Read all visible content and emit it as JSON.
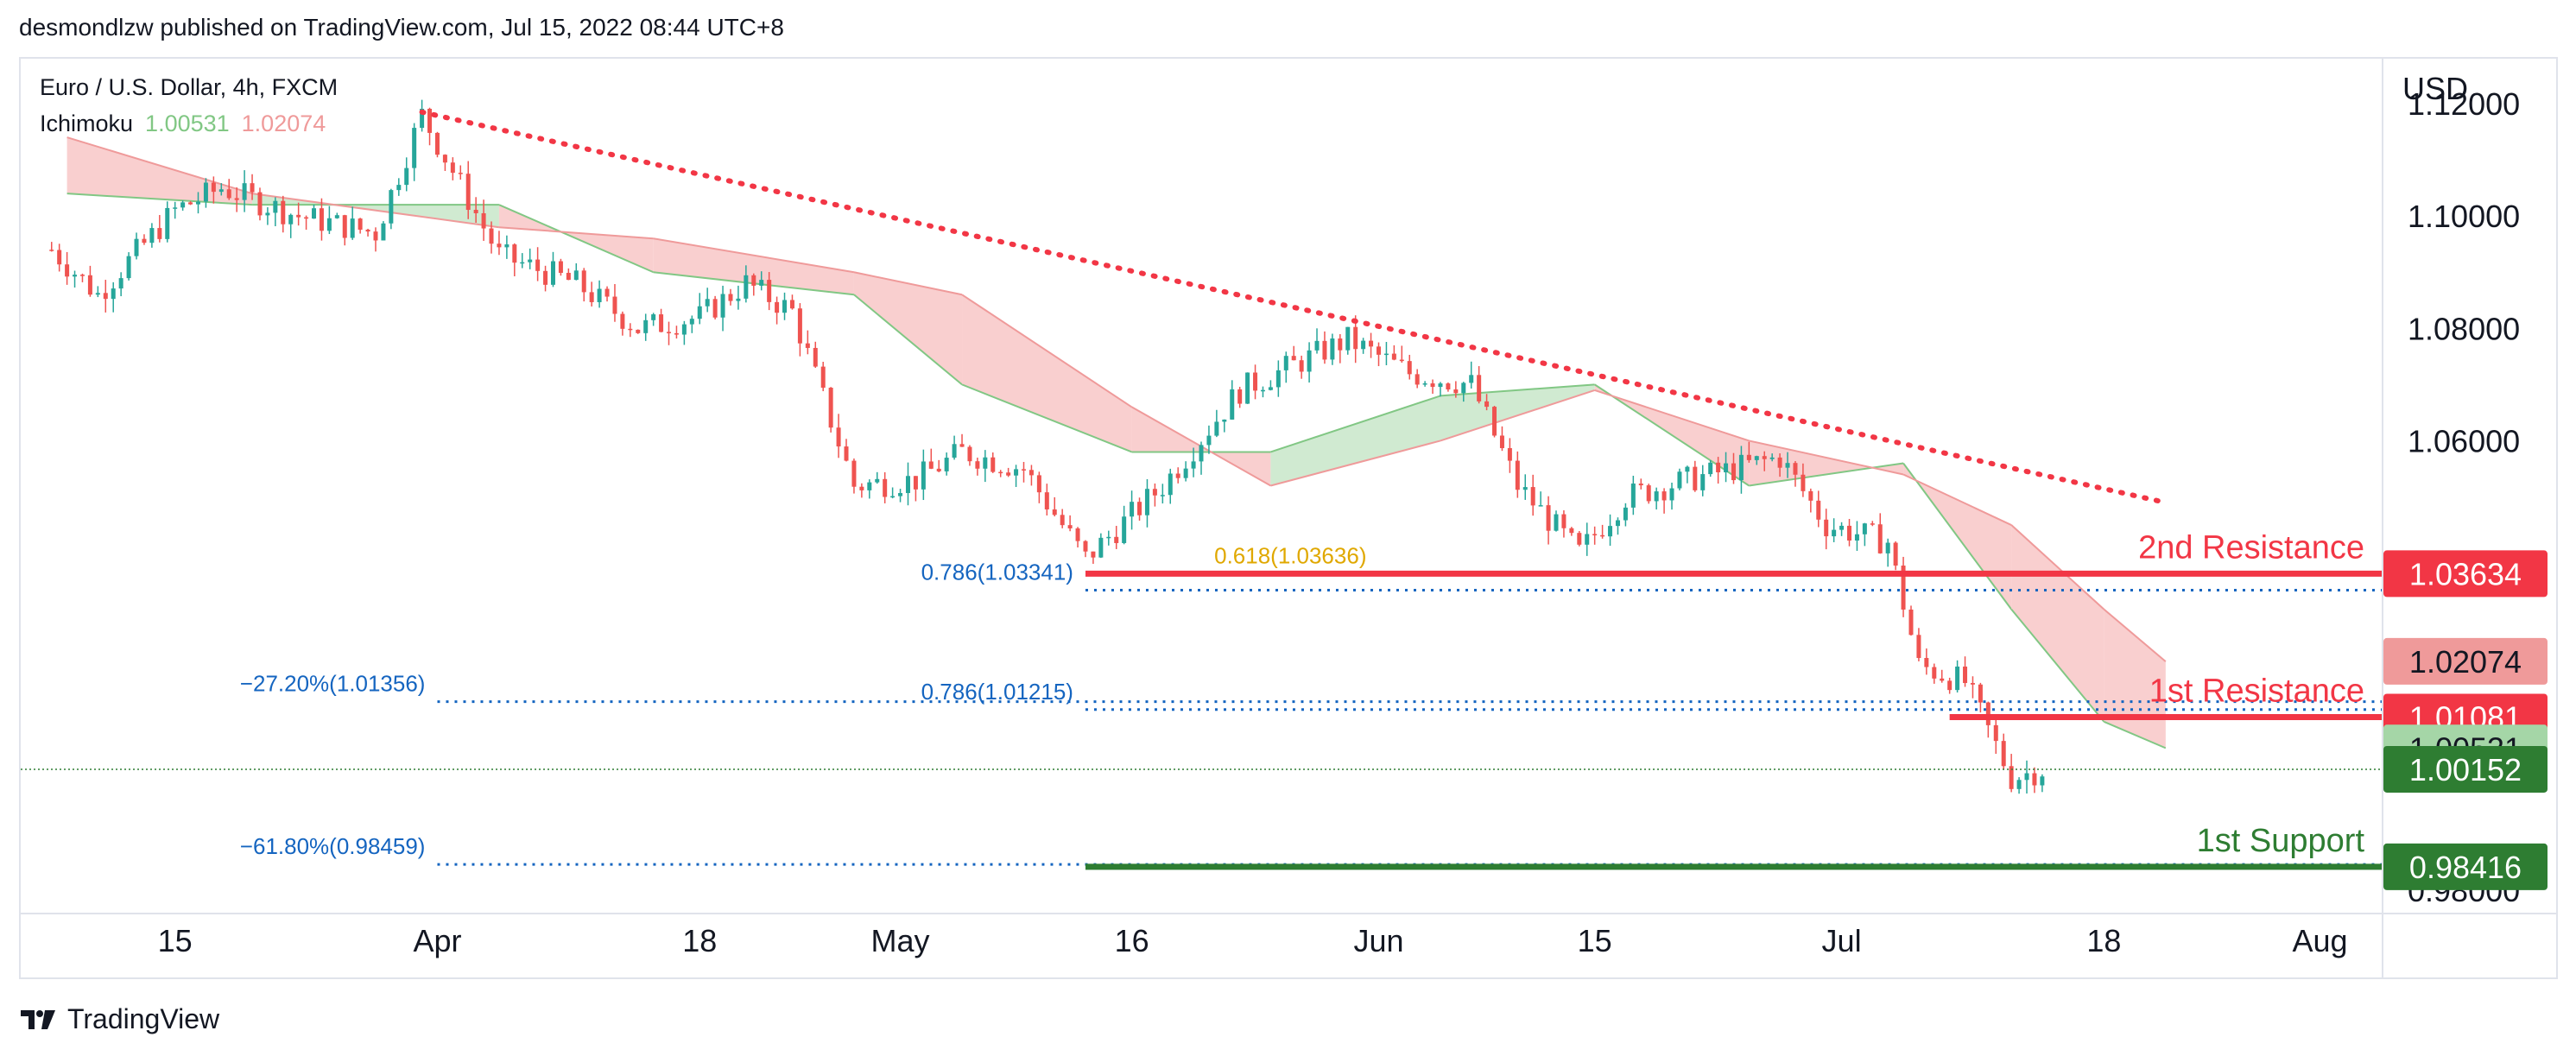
{
  "header": {
    "attribution": "desmondlzw published on TradingView.com, Jul 15, 2022 08:44 UTC+8"
  },
  "legend": {
    "symbol": "Euro / U.S. Dollar, 4h, FXCM",
    "indicator": "Ichimoku",
    "indicator_value_1": "1.00531",
    "indicator_value_2": "1.02074"
  },
  "axis": {
    "currency": "USD"
  },
  "footer": {
    "brand": "TradingView",
    "logo_icon": "tradingview-logo-icon"
  },
  "colors": {
    "resistance": "#f23645",
    "support": "#2e7d32",
    "fib": "#1565c0",
    "cloud_bear": "#f8c7c7",
    "cloud_bull": "#c8e6c9",
    "candle_up": "#26a69a",
    "candle_down": "#ef5350",
    "golden": "#e0a800"
  },
  "chart_data": {
    "type": "candlestick",
    "symbol": "EURUSD",
    "timeframe": "4h",
    "ylim": [
      0.976,
      1.128
    ],
    "y_ticks": [
      "1.12000",
      "1.10000",
      "1.08000",
      "1.06000",
      "0.98000"
    ],
    "x_ticks": [
      "15",
      "Apr",
      "18",
      "May",
      "16",
      "Jun",
      "15",
      "Jul",
      "18",
      "Aug"
    ],
    "x_tick_dates": [
      "2022-03-15",
      "2022-04-01",
      "2022-04-18",
      "2022-05-01",
      "2022-05-16",
      "2022-06-01",
      "2022-06-15",
      "2022-07-01",
      "2022-07-18",
      "2022-08-01"
    ],
    "x_range": [
      "2022-03-05",
      "2022-08-05"
    ],
    "price_path": [
      {
        "date": "2022-03-07",
        "close": 1.094
      },
      {
        "date": "2022-03-10",
        "close": 1.086
      },
      {
        "date": "2022-03-15",
        "close": 1.101
      },
      {
        "date": "2022-03-18",
        "close": 1.105
      },
      {
        "date": "2022-03-23",
        "close": 1.1
      },
      {
        "date": "2022-03-28",
        "close": 1.097
      },
      {
        "date": "2022-03-31",
        "close": 1.118
      },
      {
        "date": "2022-04-05",
        "close": 1.093
      },
      {
        "date": "2022-04-10",
        "close": 1.088
      },
      {
        "date": "2022-04-14",
        "close": 1.08
      },
      {
        "date": "2022-04-18",
        "close": 1.082
      },
      {
        "date": "2022-04-21",
        "close": 1.088
      },
      {
        "date": "2022-04-24",
        "close": 1.083
      },
      {
        "date": "2022-04-28",
        "close": 1.052
      },
      {
        "date": "2022-05-02",
        "close": 1.053
      },
      {
        "date": "2022-05-05",
        "close": 1.058
      },
      {
        "date": "2022-05-09",
        "close": 1.055
      },
      {
        "date": "2022-05-13",
        "close": 1.039
      },
      {
        "date": "2022-05-18",
        "close": 1.052
      },
      {
        "date": "2022-05-23",
        "close": 1.069
      },
      {
        "date": "2022-05-30",
        "close": 1.078
      },
      {
        "date": "2022-06-03",
        "close": 1.072
      },
      {
        "date": "2022-06-07",
        "close": 1.07
      },
      {
        "date": "2022-06-10",
        "close": 1.052
      },
      {
        "date": "2022-06-14",
        "close": 1.04
      },
      {
        "date": "2022-06-17",
        "close": 1.05
      },
      {
        "date": "2022-06-21",
        "close": 1.053
      },
      {
        "date": "2022-06-27",
        "close": 1.057
      },
      {
        "date": "2022-06-30",
        "close": 1.045
      },
      {
        "date": "2022-07-04",
        "close": 1.042
      },
      {
        "date": "2022-07-06",
        "close": 1.02
      },
      {
        "date": "2022-07-09",
        "close": 1.017
      },
      {
        "date": "2022-07-12",
        "close": 1.0
      },
      {
        "date": "2022-07-14",
        "close": 1.0015
      }
    ],
    "cloud": [
      {
        "date": "2022-03-08",
        "span_a": 1.104,
        "span_b": 1.114
      },
      {
        "date": "2022-03-20",
        "span_a": 1.102,
        "span_b": 1.104
      },
      {
        "date": "2022-04-05",
        "span_a": 1.102,
        "span_b": 1.098
      },
      {
        "date": "2022-04-15",
        "span_a": 1.09,
        "span_b": 1.096
      },
      {
        "date": "2022-04-28",
        "span_a": 1.086,
        "span_b": 1.09
      },
      {
        "date": "2022-05-05",
        "span_a": 1.07,
        "span_b": 1.086
      },
      {
        "date": "2022-05-16",
        "span_a": 1.058,
        "span_b": 1.066
      },
      {
        "date": "2022-05-25",
        "span_a": 1.058,
        "span_b": 1.052
      },
      {
        "date": "2022-06-05",
        "span_a": 1.068,
        "span_b": 1.06
      },
      {
        "date": "2022-06-15",
        "span_a": 1.07,
        "span_b": 1.069
      },
      {
        "date": "2022-06-25",
        "span_a": 1.052,
        "span_b": 1.06
      },
      {
        "date": "2022-07-05",
        "span_a": 1.056,
        "span_b": 1.054
      },
      {
        "date": "2022-07-12",
        "span_a": 1.03,
        "span_b": 1.045
      },
      {
        "date": "2022-07-18",
        "span_a": 1.01,
        "span_b": 1.03
      },
      {
        "date": "2022-07-22",
        "span_a": 1.0053,
        "span_b": 1.0207
      }
    ],
    "trendline": {
      "from": {
        "date": "2022-03-31",
        "price": 1.1185
      },
      "to": {
        "date": "2022-07-22",
        "price": 1.049
      },
      "style": "dotted"
    },
    "levels": [
      {
        "name": "2nd Resistance",
        "price": 1.03634,
        "label": "2nd Resistance",
        "price_label": "1.03634",
        "from": "2022-05-13"
      },
      {
        "name": "1st Resistance",
        "price": 1.01081,
        "label": "1st Resistance",
        "price_label": "1.01081",
        "from": "2022-07-08"
      },
      {
        "name": "1st Support",
        "price": 0.98416,
        "label": "1st Support",
        "price_label": "0.98416",
        "from": "2022-05-13"
      }
    ],
    "fib_levels": [
      {
        "text": "0.786(1.03341)",
        "price": 1.03341,
        "from": "2022-05-13"
      },
      {
        "text": "0.618(1.03636)",
        "price": 1.03636,
        "from": "2022-06-01"
      },
      {
        "text": "0.786(1.01215)",
        "price": 1.01215,
        "from": "2022-05-13"
      },
      {
        "text": "−27.20%(1.01356)",
        "price": 1.01356,
        "from": "2022-04-01"
      },
      {
        "text": "−61.80%(0.98459)",
        "price": 0.98459,
        "from": "2022-04-01"
      }
    ],
    "price_tags": [
      {
        "text": "1.03634",
        "price": 1.03634,
        "kind": "resistance"
      },
      {
        "text": "1.02074",
        "price": 1.02074,
        "kind": "cloud_b"
      },
      {
        "text": "1.01081",
        "price": 1.01081,
        "kind": "resistance"
      },
      {
        "text": "1.00531",
        "price": 1.00531,
        "kind": "cloud_a"
      },
      {
        "text": "1.00152",
        "price": 1.00152,
        "kind": "last"
      },
      {
        "text": "0.98416",
        "price": 0.98416,
        "kind": "support"
      }
    ],
    "last_price": 1.00152,
    "grid": false
  }
}
